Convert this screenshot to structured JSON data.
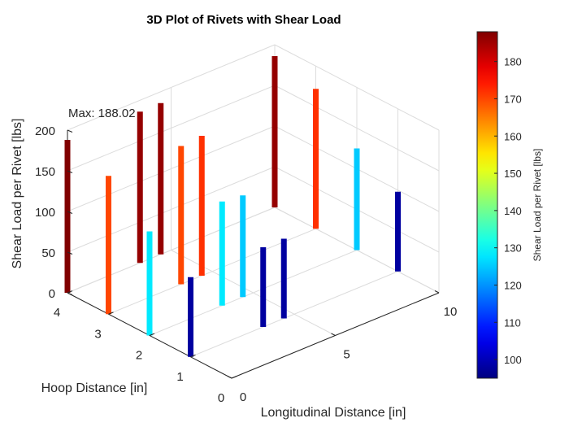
{
  "chart_data": {
    "type": "bar3d",
    "title": "3D Plot of Rivets with Shear Load",
    "xlabel": "Longitudinal Distance [in]",
    "ylabel": "Hoop Distance [in]",
    "zlabel": "Shear Load per Rivet [lbs]",
    "xlim": [
      0,
      10
    ],
    "ylim": [
      0,
      4
    ],
    "zlim": [
      0,
      200
    ],
    "xticks": [
      "0",
      "5",
      "10"
    ],
    "yticks": [
      "0",
      "1",
      "2",
      "3",
      "4"
    ],
    "zticks": [
      "0",
      "50",
      "100",
      "150",
      "200"
    ],
    "grid": true,
    "colormap": "jet",
    "colorbar": {
      "label": "Shear Load per Rivet [lbs]",
      "range": [
        95,
        188
      ],
      "ticks": [
        "100",
        "110",
        "120",
        "130",
        "140",
        "150",
        "160",
        "170",
        "180"
      ]
    },
    "annotation": "Max: 188.02",
    "rivets": [
      {
        "x": 0,
        "y": 4,
        "load": 188.02
      },
      {
        "x": 0,
        "y": 3,
        "load": 170
      },
      {
        "x": 0,
        "y": 2,
        "load": 128
      },
      {
        "x": 0,
        "y": 1,
        "load": 98
      },
      {
        "x": 4.5,
        "y": 4,
        "load": 186
      },
      {
        "x": 4.5,
        "y": 3,
        "load": 172
      },
      {
        "x": 4.5,
        "y": 2,
        "load": 125
      },
      {
        "x": 4.5,
        "y": 1,
        "load": 98
      },
      {
        "x": 3.5,
        "y": 4,
        "load": 186
      },
      {
        "x": 3.5,
        "y": 3,
        "load": 170
      },
      {
        "x": 3.5,
        "y": 2,
        "load": 128
      },
      {
        "x": 3.5,
        "y": 1,
        "load": 98
      },
      {
        "x": 10,
        "y": 4,
        "load": 186
      },
      {
        "x": 10,
        "y": 3,
        "load": 172
      },
      {
        "x": 10,
        "y": 2,
        "load": 125
      },
      {
        "x": 10,
        "y": 1,
        "load": 98
      }
    ]
  }
}
